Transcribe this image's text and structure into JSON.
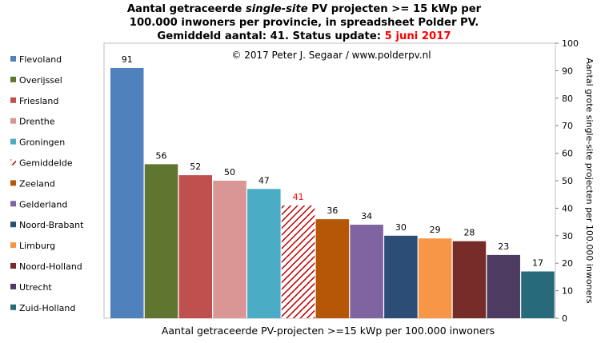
{
  "title": {
    "line1_a": "Aantal getraceerde ",
    "line1_em": "single-site",
    "line1_b": " PV projecten >= 15 kWp per",
    "line2": "100.000 inwoners per provincie, in spreadsheet Polder PV.",
    "line3_a": "Gemiddeld aantal: 41. Status update: ",
    "line3_date": "5 juni 2017"
  },
  "colors": {
    "average_label": "#ff0000",
    "average_hatch": "#c00000"
  },
  "chart_data": {
    "type": "bar",
    "copyright": "© 2017 Peter J. Segaar / www.polderpv.nl",
    "xlabel": "Aantal getraceerde PV-projecten >=15 kWp per 100.000 inwoners",
    "ylabel": "Aantal grote single-site projecten per 100.000 inwoners",
    "ylim": [
      0,
      100
    ],
    "yticks": [
      0,
      10,
      20,
      30,
      40,
      50,
      60,
      70,
      80,
      90,
      100
    ],
    "legend_position": "left",
    "categories": [
      "Flevoland",
      "Overijssel",
      "Friesland",
      "Drenthe",
      "Groningen",
      "Gemiddelde",
      "Zeeland",
      "Gelderland",
      "Noord-Brabant",
      "Limburg",
      "Noord-Holland",
      "Utrecht",
      "Zuid-Holland"
    ],
    "values": [
      91,
      56,
      52,
      50,
      47,
      41,
      36,
      34,
      30,
      29,
      28,
      23,
      17
    ],
    "bar_colors": [
      "#4f81bd",
      "#5f7530",
      "#c0504d",
      "#d99694",
      "#4bacc6",
      "hatch",
      "#b65708",
      "#8064a2",
      "#2c4d75",
      "#f79646",
      "#772c2a",
      "#4d3b62",
      "#276a7c"
    ],
    "highlight_index": 5
  }
}
